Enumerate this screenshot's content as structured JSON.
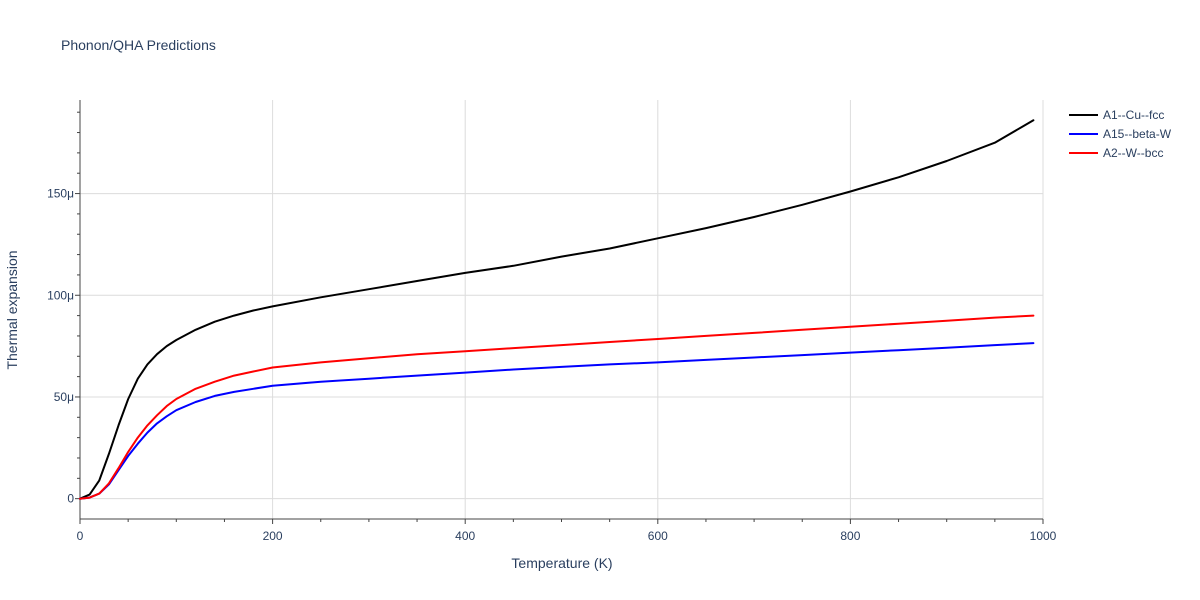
{
  "chart_data": {
    "type": "line",
    "title": "Phonon/QHA Predictions",
    "xlabel": "Temperature (K)",
    "ylabel": "Thermal expansion",
    "xlim": [
      0,
      1000
    ],
    "ylim": [
      -10,
      196
    ],
    "xticks": [
      0,
      200,
      400,
      600,
      800,
      1000
    ],
    "xtick_labels": [
      "0",
      "200",
      "400",
      "600",
      "800",
      "1000"
    ],
    "yticks": [
      0,
      50,
      100,
      150
    ],
    "ytick_labels": [
      "0",
      "50μ",
      "100μ",
      "150μ"
    ],
    "y_unit": "1e-6 /K",
    "grid": true,
    "legend_position": "top-right",
    "series": [
      {
        "name": "A1--Cu--fcc",
        "color": "#000000",
        "x": [
          0,
          10,
          20,
          30,
          40,
          50,
          60,
          70,
          80,
          90,
          100,
          120,
          140,
          160,
          180,
          200,
          250,
          300,
          350,
          400,
          450,
          500,
          550,
          600,
          650,
          700,
          750,
          800,
          850,
          900,
          950,
          990
        ],
        "y": [
          0,
          2,
          9,
          22,
          36,
          49,
          59,
          66,
          71,
          75,
          78,
          83,
          87,
          90,
          92.5,
          94.5,
          99,
          103,
          107,
          111,
          114.5,
          119,
          123,
          128,
          133,
          138.5,
          144.5,
          151,
          158,
          166,
          175,
          186
        ]
      },
      {
        "name": "A15--beta-W",
        "color": "#0000ff",
        "x": [
          0,
          10,
          20,
          30,
          40,
          50,
          60,
          70,
          80,
          90,
          100,
          120,
          140,
          160,
          180,
          200,
          250,
          300,
          350,
          400,
          450,
          500,
          550,
          600,
          650,
          700,
          750,
          800,
          850,
          900,
          950,
          990
        ],
        "y": [
          0,
          0.5,
          2.5,
          7,
          14,
          21,
          27,
          32.5,
          37,
          40.5,
          43.5,
          47.5,
          50.5,
          52.5,
          54,
          55.5,
          57.5,
          59,
          60.5,
          62,
          63.5,
          64.8,
          66,
          67,
          68.2,
          69.4,
          70.6,
          71.8,
          73,
          74.2,
          75.5,
          76.5
        ]
      },
      {
        "name": "A2--W--bcc",
        "color": "#ff0000",
        "x": [
          0,
          10,
          20,
          30,
          40,
          50,
          60,
          70,
          80,
          90,
          100,
          120,
          140,
          160,
          180,
          200,
          250,
          300,
          350,
          400,
          450,
          500,
          550,
          600,
          650,
          700,
          750,
          800,
          850,
          900,
          950,
          990
        ],
        "y": [
          0,
          0.5,
          2.5,
          7.5,
          15,
          23,
          30,
          36,
          41,
          45.5,
          49,
          54,
          57.5,
          60.5,
          62.5,
          64.5,
          67,
          69,
          71,
          72.5,
          74,
          75.5,
          77,
          78.5,
          80,
          81.5,
          83,
          84.5,
          86,
          87.5,
          89,
          90
        ]
      }
    ]
  }
}
